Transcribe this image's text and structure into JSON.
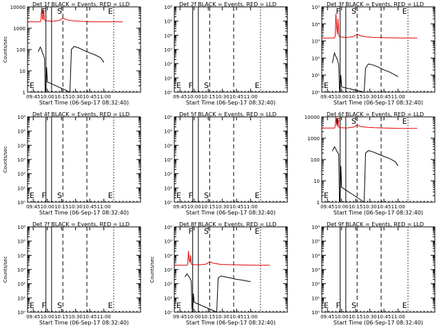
{
  "chart_data": [
    {
      "type": "line",
      "title": "Det 1f BLACK = Events, RED = LLD",
      "xlabel": "Start Time (06-Sep-17 08:32:40)",
      "ylabel": "Counts/sec",
      "yscale": "log",
      "ylim": [
        1,
        10000
      ],
      "ytick_labels": [
        "1",
        "10",
        "100",
        "1000",
        "10000"
      ],
      "xlim": [
        0,
        160
      ],
      "xtick_labels": [
        "09:45",
        "10:00",
        "10:15",
        "10:30",
        "10:45",
        "11:00"
      ],
      "markers": [
        {
          "label": "E",
          "x": 1
        },
        {
          "label": "F",
          "x": 18
        },
        {
          "label": "S",
          "x": 40
        },
        {
          "label": "E",
          "x": 112
        }
      ],
      "series": [
        {
          "name": "Events",
          "color": "#000000",
          "x": [
            15,
            18,
            19,
            20,
            21,
            22,
            24,
            25,
            26,
            27,
            28,
            60,
            62,
            66,
            72,
            80,
            88,
            96,
            104,
            108
          ],
          "y": [
            80,
            130,
            110,
            95,
            70,
            60,
            40,
            1,
            0.5,
            15,
            3,
            1,
            100,
            140,
            120,
            90,
            70,
            55,
            40,
            25
          ]
        },
        {
          "name": "LLD",
          "color": "#dd0000",
          "x": [
            0,
            18,
            19,
            20,
            21,
            22,
            23,
            24,
            25,
            28,
            35,
            45,
            50,
            55,
            65,
            75,
            90,
            110,
            135
          ],
          "y": [
            2000,
            2000,
            2500,
            9000,
            3000,
            2500,
            6000,
            2500,
            2200,
            2200,
            2100,
            2300,
            3000,
            2500,
            2200,
            2100,
            2000,
            2000,
            2000
          ]
        }
      ]
    },
    {
      "type": "line",
      "title": "Det 2f BLACK = Events, RED = LLD",
      "xlabel": "Start Time (06-Sep-17 08:32:40)",
      "ylabel": "",
      "yscale": "log",
      "ylim": [
        1,
        1000000
      ],
      "ytick_labels": [
        "10⁰",
        "10¹",
        "10²",
        "10³",
        "10⁴",
        "10⁵",
        "10⁶"
      ],
      "xlim": [
        0,
        160
      ],
      "xtick_labels": [
        "09:45",
        "10:00",
        "10:15",
        "10:30",
        "10:45",
        "11:00"
      ],
      "markers": [
        {
          "label": "E",
          "x": 1
        },
        {
          "label": "F",
          "x": 18
        },
        {
          "label": "S",
          "x": 40
        },
        {
          "label": "E",
          "x": 112
        }
      ],
      "series": []
    },
    {
      "type": "line",
      "title": "Det 3f BLACK = Events, RED = LLD",
      "xlabel": "Start Time (06-Sep-17 08:32:40)",
      "ylabel": "",
      "yscale": "log",
      "ylim": [
        1,
        100000
      ],
      "ytick_labels": [
        "10⁰",
        "10¹",
        "10²",
        "10³",
        "10⁴",
        "10⁵"
      ],
      "xlim": [
        0,
        160
      ],
      "xtick_labels": [
        "09:45",
        "10:00",
        "10:15",
        "10:30",
        "10:45",
        "11:00"
      ],
      "markers": [
        {
          "label": "E",
          "x": 1
        },
        {
          "label": "F",
          "x": 18
        },
        {
          "label": "S",
          "x": 40
        },
        {
          "label": "E",
          "x": 112
        }
      ],
      "series": [
        {
          "name": "Events",
          "color": "#000000",
          "x": [
            15,
            18,
            19,
            20,
            22,
            24,
            25,
            26,
            27,
            28,
            60,
            62,
            66,
            72,
            80,
            88,
            96,
            104,
            108
          ],
          "y": [
            50,
            200,
            150,
            120,
            80,
            40,
            1.5,
            0.8,
            10,
            2,
            1,
            25,
            45,
            40,
            30,
            20,
            15,
            10,
            8
          ]
        },
        {
          "name": "LLD",
          "color": "#dd0000",
          "x": [
            0,
            18,
            19,
            20,
            21,
            22,
            23,
            24,
            25,
            28,
            35,
            45,
            50,
            55,
            65,
            75,
            90,
            110,
            135
          ],
          "y": [
            1500,
            1500,
            2000,
            40000,
            8000,
            2500,
            20000,
            2200,
            1800,
            1700,
            1600,
            1800,
            2500,
            2000,
            1700,
            1600,
            1550,
            1500,
            1500
          ]
        }
      ]
    },
    {
      "type": "line",
      "title": "Det 4f BLACK = Events, RED = LLD",
      "xlabel": "Start Time (06-Sep-17 08:32:40)",
      "ylabel": "Counts/sec",
      "yscale": "log",
      "ylim": [
        1,
        1000000
      ],
      "ytick_labels": [
        "10⁰",
        "10¹",
        "10²",
        "10³",
        "10⁴",
        "10⁵",
        "10⁶"
      ],
      "xlim": [
        0,
        160
      ],
      "xtick_labels": [
        "09:45",
        "10:00",
        "10:15",
        "10:30",
        "10:45",
        "11:00"
      ],
      "markers": [
        {
          "label": "E",
          "x": 1
        },
        {
          "label": "F",
          "x": 18
        },
        {
          "label": "S",
          "x": 40
        },
        {
          "label": "E",
          "x": 112
        }
      ],
      "series": []
    },
    {
      "type": "line",
      "title": "Det 5f BLACK = Events, RED = LLD",
      "xlabel": "Start Time (06-Sep-17 08:32:40)",
      "ylabel": "",
      "yscale": "log",
      "ylim": [
        1,
        1000000
      ],
      "ytick_labels": [
        "10⁰",
        "10¹",
        "10²",
        "10³",
        "10⁴",
        "10⁵",
        "10⁶"
      ],
      "xlim": [
        0,
        160
      ],
      "xtick_labels": [
        "09:45",
        "10:00",
        "10:15",
        "10:30",
        "10:45",
        "11:00"
      ],
      "markers": [
        {
          "label": "E",
          "x": 1
        },
        {
          "label": "F",
          "x": 18
        },
        {
          "label": "S",
          "x": 40
        },
        {
          "label": "E",
          "x": 112
        }
      ],
      "series": []
    },
    {
      "type": "line",
      "title": "Det 6f BLACK = Events, RED = LLD",
      "xlabel": "Start Time (06-Sep-17 08:32:40)",
      "ylabel": "",
      "yscale": "log",
      "ylim": [
        1,
        10000
      ],
      "ytick_labels": [
        "1",
        "10",
        "100",
        "1000",
        "10000"
      ],
      "xlim": [
        0,
        160
      ],
      "xtick_labels": [
        "09:45",
        "10:00",
        "10:15",
        "10:30",
        "10:45",
        "11:00"
      ],
      "markers": [
        {
          "label": "E",
          "x": 1
        },
        {
          "label": "F",
          "x": 18
        },
        {
          "label": "S",
          "x": 40
        },
        {
          "label": "E",
          "x": 112
        }
      ],
      "series": [
        {
          "name": "Events",
          "color": "#000000",
          "x": [
            15,
            18,
            19,
            20,
            22,
            24,
            25,
            26,
            27,
            28,
            60,
            62,
            66,
            72,
            80,
            88,
            96,
            104,
            108
          ],
          "y": [
            250,
            400,
            350,
            300,
            220,
            180,
            1,
            0.5,
            50,
            5,
            1,
            200,
            260,
            230,
            180,
            140,
            110,
            80,
            50
          ]
        },
        {
          "name": "LLD",
          "color": "#dd0000",
          "x": [
            0,
            18,
            19,
            20,
            21,
            22,
            23,
            24,
            25,
            28,
            35,
            45,
            50,
            55,
            65,
            75,
            90,
            110,
            135
          ],
          "y": [
            3000,
            3000,
            3500,
            10000,
            5000,
            3500,
            8000,
            3300,
            3100,
            3100,
            3000,
            3300,
            4200,
            3500,
            3200,
            3100,
            3000,
            2900,
            2900
          ]
        }
      ]
    },
    {
      "type": "line",
      "title": "Det 7f BLACK = Events, RED = LLD",
      "xlabel": "Start Time (06-Sep-17 08:32:40)",
      "ylabel": "Counts/sec",
      "yscale": "log",
      "ylim": [
        1,
        1000000
      ],
      "ytick_labels": [
        "10⁰",
        "10¹",
        "10²",
        "10³",
        "10⁴",
        "10⁵",
        "10⁶"
      ],
      "xlim": [
        0,
        160
      ],
      "xtick_labels": [
        "09:45",
        "10:00",
        "10:15",
        "10:30",
        "10:45",
        "11:00"
      ],
      "markers": [
        {
          "label": "E",
          "x": 1
        },
        {
          "label": "F",
          "x": 18
        },
        {
          "label": "S",
          "x": 40
        },
        {
          "label": "E",
          "x": 112
        }
      ],
      "series": []
    },
    {
      "type": "line",
      "title": "Det 8f BLACK = Events, RED = LLD",
      "xlabel": "Start Time (06-Sep-17 08:32:40)",
      "ylabel": "Counts/sec",
      "yscale": "log",
      "ylim": [
        1,
        1000000
      ],
      "ytick_labels": [
        "10⁰",
        "10¹",
        "10²",
        "10³",
        "10⁴",
        "10⁵",
        "10⁶"
      ],
      "xlim": [
        0,
        160
      ],
      "xtick_labels": [
        "09:45",
        "10:00",
        "10:15",
        "10:30",
        "10:45",
        "11:00"
      ],
      "markers": [
        {
          "label": "E",
          "x": 1
        },
        {
          "label": "F",
          "x": 18
        },
        {
          "label": "S",
          "x": 40
        },
        {
          "label": "E",
          "x": 112
        }
      ],
      "series": [
        {
          "name": "Events",
          "color": "#000000",
          "x": [
            15,
            18,
            19,
            20,
            22,
            24,
            25,
            26,
            27,
            28,
            60,
            62,
            66,
            72,
            80,
            88,
            96,
            104,
            108
          ],
          "y": [
            300,
            500,
            400,
            350,
            250,
            150,
            2,
            1,
            20,
            5,
            1,
            250,
            350,
            300,
            250,
            200,
            180,
            150,
            140
          ]
        },
        {
          "name": "LLD",
          "color": "#dd0000",
          "x": [
            0,
            18,
            19,
            20,
            21,
            22,
            23,
            24,
            25,
            28,
            35,
            45,
            50,
            55,
            65,
            75,
            90,
            110,
            135
          ],
          "y": [
            2000,
            2000,
            2500,
            20000,
            5000,
            3000,
            10000,
            2500,
            2200,
            2200,
            2100,
            2400,
            3500,
            2800,
            2300,
            2200,
            2100,
            2000,
            2000
          ]
        }
      ]
    },
    {
      "type": "line",
      "title": "Det 9f BLACK = Events, RED = LLD",
      "xlabel": "Start Time (06-Sep-17 08:32:40)",
      "ylabel": "",
      "yscale": "log",
      "ylim": [
        1,
        1000000
      ],
      "ytick_labels": [
        "10⁰",
        "10¹",
        "10²",
        "10³",
        "10⁴",
        "10⁵",
        "10⁶"
      ],
      "xlim": [
        0,
        160
      ],
      "xtick_labels": [
        "09:45",
        "10:00",
        "10:15",
        "10:30",
        "10:45",
        "11:00"
      ],
      "markers": [
        {
          "label": "E",
          "x": 1
        },
        {
          "label": "F",
          "x": 18
        },
        {
          "label": "S",
          "x": 40
        },
        {
          "label": "E",
          "x": 112
        }
      ],
      "series": []
    }
  ]
}
